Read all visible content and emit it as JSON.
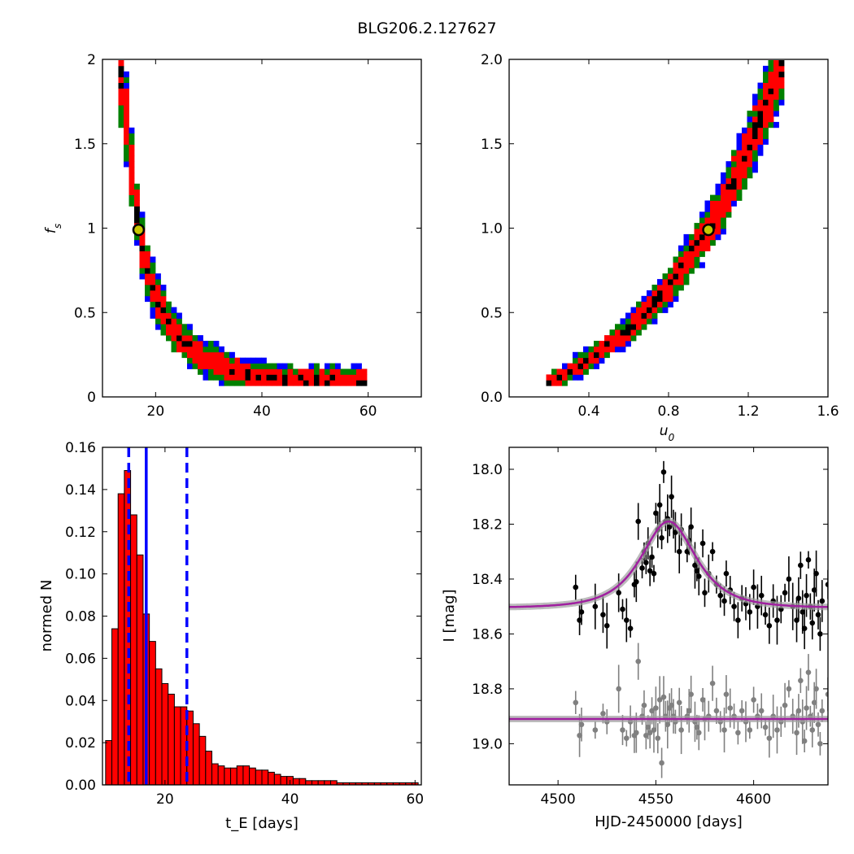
{
  "figure": {
    "title": "BLG206.2.127627"
  },
  "chart_data": [
    {
      "id": "fs_vs_tE",
      "type": "heatmap",
      "title": "",
      "xlabel": "",
      "ylabel": "f_s",
      "xlim": [
        10,
        70
      ],
      "ylim": [
        0.0,
        2.0
      ],
      "xticks": [
        20,
        40,
        60
      ],
      "yticks": [
        0.0,
        0.5,
        1.0,
        1.5,
        2.0
      ],
      "confidence_levels": [
        "black",
        "red",
        "green",
        "blue"
      ],
      "ridge": [
        [
          13,
          2.0
        ],
        [
          14,
          1.8
        ],
        [
          15,
          1.5
        ],
        [
          16,
          1.2
        ],
        [
          17,
          1.0
        ],
        [
          18,
          0.8
        ],
        [
          20,
          0.6
        ],
        [
          23,
          0.4
        ],
        [
          28,
          0.25
        ],
        [
          35,
          0.15
        ],
        [
          45,
          0.1
        ],
        [
          60,
          0.09
        ]
      ],
      "best_fit": {
        "x": 16.8,
        "y": 0.99
      }
    },
    {
      "id": "fs_vs_u0",
      "type": "heatmap",
      "title": "",
      "xlabel": "u_0",
      "ylabel": "",
      "xlim": [
        0.0,
        1.6
      ],
      "ylim": [
        0.0,
        2.0
      ],
      "xticks": [
        "0.4",
        "0.8",
        "1.2",
        "1.6"
      ],
      "yticks": [
        "0.0",
        "0.5",
        "1.0",
        "1.5",
        "2.0"
      ],
      "confidence_levels": [
        "black",
        "red",
        "green",
        "blue"
      ],
      "ridge": [
        [
          0.2,
          0.08
        ],
        [
          0.3,
          0.15
        ],
        [
          0.4,
          0.22
        ],
        [
          0.5,
          0.3
        ],
        [
          0.6,
          0.4
        ],
        [
          0.7,
          0.52
        ],
        [
          0.8,
          0.65
        ],
        [
          0.9,
          0.82
        ],
        [
          1.0,
          0.99
        ],
        [
          1.1,
          1.2
        ],
        [
          1.2,
          1.45
        ],
        [
          1.3,
          1.75
        ],
        [
          1.38,
          2.0
        ]
      ],
      "best_fit": {
        "x": 1.0,
        "y": 0.99
      }
    },
    {
      "id": "tE_histogram",
      "type": "bar",
      "title": "",
      "xlabel": "t_E  [days]",
      "ylabel": "normed N",
      "xlim": [
        10,
        61
      ],
      "ylim": [
        0.0,
        0.16
      ],
      "xticks": [
        20,
        40,
        60
      ],
      "yticks": [
        "0.00",
        "0.02",
        "0.04",
        "0.06",
        "0.08",
        "0.10",
        "0.12",
        "0.14",
        "0.16"
      ],
      "bin_start": 10.5,
      "bin_width": 1.0,
      "values": [
        0.021,
        0.074,
        0.138,
        0.149,
        0.128,
        0.109,
        0.081,
        0.068,
        0.055,
        0.048,
        0.043,
        0.037,
        0.037,
        0.035,
        0.029,
        0.023,
        0.016,
        0.01,
        0.009,
        0.008,
        0.008,
        0.009,
        0.009,
        0.008,
        0.007,
        0.007,
        0.006,
        0.005,
        0.004,
        0.004,
        0.003,
        0.003,
        0.002,
        0.002,
        0.002,
        0.002,
        0.002,
        0.001,
        0.001,
        0.001,
        0.001,
        0.001,
        0.001,
        0.001,
        0.001,
        0.001,
        0.001,
        0.001,
        0.001,
        0.001
      ],
      "bar_color": "#ff0000",
      "median_line": 17.0,
      "interval_lines": [
        14.2,
        23.5
      ],
      "line_color": "#0000ff"
    },
    {
      "id": "light_curve",
      "type": "scatter",
      "title": "",
      "xlabel": "HJD-2450000 [days]",
      "ylabel": "I [mag]",
      "xlim": [
        4475,
        4638
      ],
      "ylim": [
        19.15,
        17.92
      ],
      "inverted_y": true,
      "xticks": [
        4500,
        4550,
        4600
      ],
      "yticks": [
        "18.0",
        "18.2",
        "18.4",
        "18.6",
        "18.8",
        "19.0"
      ],
      "model": {
        "t0": 4556.5,
        "u0": 1.0,
        "tE": 16.8,
        "baseline": 18.505,
        "color": "#a020a0"
      },
      "residual_baseline": 18.91,
      "series": [
        {
          "name": "",
          "color": "#000000",
          "points": [
            [
              4509,
              18.43
            ],
            [
              4511,
              18.55
            ],
            [
              4512,
              18.52
            ],
            [
              4519,
              18.5
            ],
            [
              4523,
              18.53
            ],
            [
              4525,
              18.57
            ],
            [
              4531,
              18.45
            ],
            [
              4533,
              18.51
            ],
            [
              4535,
              18.55
            ],
            [
              4537,
              18.58
            ],
            [
              4539,
              18.42
            ],
            [
              4540,
              18.41
            ],
            [
              4541,
              18.19
            ],
            [
              4543,
              18.36
            ],
            [
              4544,
              18.3
            ],
            [
              4545,
              18.34
            ],
            [
              4546,
              18.27
            ],
            [
              4547,
              18.37
            ],
            [
              4548,
              18.32
            ],
            [
              4549,
              18.38
            ],
            [
              4550,
              18.16
            ],
            [
              4551,
              18.22
            ],
            [
              4552,
              18.13
            ],
            [
              4553,
              18.25
            ],
            [
              4554,
              18.01
            ],
            [
              4555,
              18.19
            ],
            [
              4556,
              18.18
            ],
            [
              4557,
              18.21
            ],
            [
              4558,
              18.1
            ],
            [
              4559,
              18.2
            ],
            [
              4560,
              18.23
            ],
            [
              4562,
              18.3
            ],
            [
              4563,
              18.22
            ],
            [
              4566,
              18.3
            ],
            [
              4567,
              18.26
            ],
            [
              4568,
              18.21
            ],
            [
              4570,
              18.35
            ],
            [
              4571,
              18.37
            ],
            [
              4572,
              18.39
            ],
            [
              4574,
              18.27
            ],
            [
              4575,
              18.45
            ],
            [
              4577,
              18.38
            ],
            [
              4579,
              18.3
            ],
            [
              4581,
              18.42
            ],
            [
              4583,
              18.46
            ],
            [
              4585,
              18.48
            ],
            [
              4586,
              18.38
            ],
            [
              4588,
              18.44
            ],
            [
              4590,
              18.5
            ],
            [
              4592,
              18.55
            ],
            [
              4594,
              18.47
            ],
            [
              4596,
              18.49
            ],
            [
              4598,
              18.52
            ],
            [
              4600,
              18.43
            ],
            [
              4602,
              18.5
            ],
            [
              4604,
              18.46
            ],
            [
              4606,
              18.53
            ],
            [
              4608,
              18.57
            ],
            [
              4610,
              18.48
            ],
            [
              4612,
              18.55
            ],
            [
              4614,
              18.51
            ],
            [
              4616,
              18.45
            ],
            [
              4618,
              18.4
            ],
            [
              4620,
              18.5
            ],
            [
              4622,
              18.55
            ],
            [
              4623,
              18.47
            ],
            [
              4624,
              18.35
            ],
            [
              4625,
              18.52
            ],
            [
              4626,
              18.58
            ],
            [
              4627,
              18.46
            ],
            [
              4628,
              18.33
            ],
            [
              4629,
              18.5
            ],
            [
              4630,
              18.56
            ],
            [
              4631,
              18.44
            ],
            [
              4632,
              18.38
            ],
            [
              4633,
              18.53
            ],
            [
              4634,
              18.6
            ],
            [
              4635,
              18.48
            ],
            [
              4638,
              18.42
            ]
          ]
        },
        {
          "name": "",
          "color": "#808080",
          "points": [
            [
              4509,
              18.85
            ],
            [
              4511,
              18.97
            ],
            [
              4512,
              18.93
            ],
            [
              4519,
              18.95
            ],
            [
              4523,
              18.89
            ],
            [
              4525,
              18.92
            ],
            [
              4531,
              18.8
            ],
            [
              4533,
              18.95
            ],
            [
              4535,
              18.98
            ],
            [
              4537,
              18.92
            ],
            [
              4539,
              18.97
            ],
            [
              4540,
              18.96
            ],
            [
              4541,
              18.7
            ],
            [
              4543,
              18.9
            ],
            [
              4544,
              18.86
            ],
            [
              4545,
              18.97
            ],
            [
              4546,
              18.94
            ],
            [
              4547,
              18.96
            ],
            [
              4548,
              18.88
            ],
            [
              4549,
              18.95
            ],
            [
              4550,
              18.87
            ],
            [
              4551,
              18.98
            ],
            [
              4552,
              18.84
            ],
            [
              4553,
              19.07
            ],
            [
              4554,
              18.83
            ],
            [
              4555,
              18.9
            ],
            [
              4556,
              18.93
            ],
            [
              4557,
              18.87
            ],
            [
              4558,
              18.86
            ],
            [
              4559,
              18.9
            ],
            [
              4560,
              18.92
            ],
            [
              4562,
              18.85
            ],
            [
              4563,
              18.95
            ],
            [
              4566,
              18.9
            ],
            [
              4567,
              18.88
            ],
            [
              4568,
              18.82
            ],
            [
              4570,
              18.92
            ],
            [
              4571,
              18.94
            ],
            [
              4572,
              18.96
            ],
            [
              4574,
              18.84
            ],
            [
              4575,
              18.91
            ],
            [
              4577,
              18.9
            ],
            [
              4579,
              18.78
            ],
            [
              4581,
              18.88
            ],
            [
              4583,
              18.92
            ],
            [
              4585,
              18.95
            ],
            [
              4586,
              18.82
            ],
            [
              4588,
              18.87
            ],
            [
              4590,
              18.9
            ],
            [
              4592,
              18.96
            ],
            [
              4594,
              18.88
            ],
            [
              4596,
              18.92
            ],
            [
              4598,
              18.95
            ],
            [
              4600,
              18.84
            ],
            [
              4602,
              18.9
            ],
            [
              4604,
              18.88
            ],
            [
              4606,
              18.94
            ],
            [
              4608,
              18.98
            ],
            [
              4610,
              18.9
            ],
            [
              4612,
              18.95
            ],
            [
              4614,
              18.92
            ],
            [
              4616,
              18.86
            ],
            [
              4618,
              18.8
            ],
            [
              4620,
              18.9
            ],
            [
              4622,
              18.96
            ],
            [
              4623,
              18.88
            ],
            [
              4624,
              18.77
            ],
            [
              4625,
              18.92
            ],
            [
              4626,
              18.99
            ],
            [
              4627,
              18.87
            ],
            [
              4628,
              18.74
            ],
            [
              4629,
              18.9
            ],
            [
              4630,
              18.95
            ],
            [
              4631,
              18.85
            ],
            [
              4632,
              18.8
            ],
            [
              4633,
              18.93
            ],
            [
              4634,
              19.0
            ],
            [
              4635,
              18.88
            ],
            [
              4638,
              18.82
            ]
          ]
        }
      ]
    }
  ]
}
